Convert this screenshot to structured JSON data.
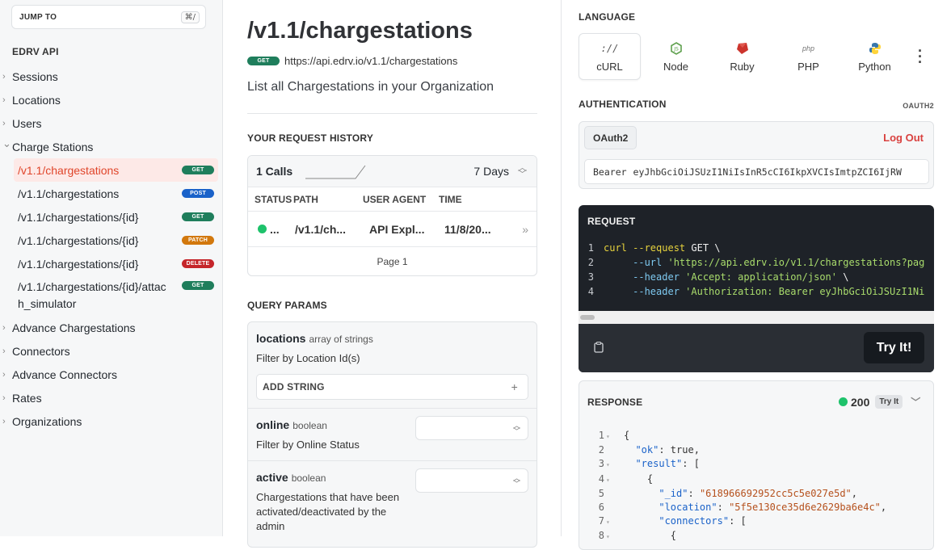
{
  "sidebar": {
    "jump_label": "JUMP TO",
    "jump_shortcut": "⌘/",
    "api_title": "EDRV API",
    "items_before": [
      {
        "label": "Sessions"
      },
      {
        "label": "Locations"
      },
      {
        "label": "Users"
      }
    ],
    "expanded": {
      "label": "Charge Stations",
      "children": [
        {
          "label": "/v1.1/chargestations",
          "method": "GET",
          "active": true
        },
        {
          "label": "/v1.1/chargestations",
          "method": "POST"
        },
        {
          "label": "/v1.1/chargestations/{id}",
          "method": "GET"
        },
        {
          "label": "/v1.1/chargestations/{id}",
          "method": "PATCH"
        },
        {
          "label": "/v1.1/chargestations/{id}",
          "method": "DELETE"
        },
        {
          "label": "/v1.1/chargestations/{id}/attach_simulator",
          "method": "GET"
        }
      ]
    },
    "items_after": [
      {
        "label": "Advance Chargestations"
      },
      {
        "label": "Connectors"
      },
      {
        "label": "Advance Connectors"
      },
      {
        "label": "Rates"
      },
      {
        "label": "Organizations"
      }
    ]
  },
  "endpoint": {
    "title": "/v1.1/chargestations",
    "method": "GET",
    "url": "https://api.edrv.io/v1.1/chargestations",
    "description": "List all Chargestations in your Organization"
  },
  "history": {
    "section_title": "YOUR REQUEST HISTORY",
    "calls": "1 Calls",
    "range": "7 Days",
    "columns": [
      "STATUS",
      "PATH",
      "USER AGENT",
      "TIME"
    ],
    "rows": [
      {
        "status": "...",
        "path": "/v1.1/ch...",
        "agent": "API Expl...",
        "time": "11/8/20..."
      }
    ],
    "page": "Page 1"
  },
  "query_params": {
    "section_title": "QUERY PARAMS",
    "params": [
      {
        "name": "locations",
        "type": "array of strings",
        "description": "Filter by Location Id(s)",
        "button": "ADD STRING"
      },
      {
        "name": "online",
        "type": "boolean",
        "description": "Filter by Online Status"
      },
      {
        "name": "active",
        "type": "boolean",
        "description": "Chargestations that have been activated/deactivated by the admin"
      }
    ]
  },
  "language": {
    "section_title": "LANGUAGE",
    "tabs": [
      {
        "label": "cURL",
        "icon": "curl-icon",
        "active": true
      },
      {
        "label": "Node",
        "icon": "node-icon"
      },
      {
        "label": "Ruby",
        "icon": "ruby-icon"
      },
      {
        "label": "PHP",
        "icon": "php-icon"
      },
      {
        "label": "Python",
        "icon": "python-icon"
      }
    ]
  },
  "auth": {
    "section_title": "AUTHENTICATION",
    "scheme_tag": "OAUTH2",
    "scheme_button": "OAuth2",
    "logout": "Log Out",
    "bearer_prefix": "Bearer",
    "token": "eyJhbGciOiJSUzI1NiIsInR5cCI6IkpXVCIsImtpZCI6IjRW"
  },
  "request": {
    "title": "REQUEST",
    "lines": [
      {
        "n": "1",
        "parts": [
          [
            "c-y",
            "curl "
          ],
          [
            "c-y",
            "--request "
          ],
          [
            "c-w",
            "GET \\"
          ]
        ]
      },
      {
        "n": "2",
        "parts": [
          [
            "c-w",
            "     "
          ],
          [
            "c-b",
            "--url "
          ],
          [
            "c-g",
            "'https://api.edrv.io/v1.1/chargestations?pag"
          ]
        ]
      },
      {
        "n": "3",
        "parts": [
          [
            "c-w",
            "     "
          ],
          [
            "c-b",
            "--header "
          ],
          [
            "c-g",
            "'Accept: application/json'"
          ],
          [
            "c-w",
            " \\"
          ]
        ]
      },
      {
        "n": "4",
        "parts": [
          [
            "c-w",
            "     "
          ],
          [
            "c-b",
            "--header "
          ],
          [
            "c-g",
            "'Authorization: Bearer eyJhbGciOiJSUzI1Ni"
          ]
        ]
      }
    ],
    "try_label": "Try It!"
  },
  "response": {
    "title": "RESPONSE",
    "status_code": "200",
    "try_label": "Try It",
    "lines": [
      {
        "n": "1",
        "fold": true,
        "text": [
          [
            "j-p",
            "{"
          ]
        ]
      },
      {
        "n": "2",
        "fold": false,
        "text": [
          [
            "j-p",
            "  "
          ],
          [
            "j-k",
            "\"ok\""
          ],
          [
            "j-p",
            ": true,"
          ]
        ]
      },
      {
        "n": "3",
        "fold": true,
        "text": [
          [
            "j-p",
            "  "
          ],
          [
            "j-k",
            "\"result\""
          ],
          [
            "j-p",
            ": ["
          ]
        ]
      },
      {
        "n": "4",
        "fold": true,
        "text": [
          [
            "j-p",
            "    {"
          ]
        ]
      },
      {
        "n": "5",
        "fold": false,
        "text": [
          [
            "j-p",
            "      "
          ],
          [
            "j-k",
            "\"_id\""
          ],
          [
            "j-p",
            ": "
          ],
          [
            "j-s",
            "\"618966692952cc5c5e027e5d\""
          ],
          [
            "j-p",
            ","
          ]
        ]
      },
      {
        "n": "6",
        "fold": false,
        "text": [
          [
            "j-p",
            "      "
          ],
          [
            "j-k",
            "\"location\""
          ],
          [
            "j-p",
            ": "
          ],
          [
            "j-s",
            "\"5f5e130ce35d6e2629ba6e4c\""
          ],
          [
            "j-p",
            ","
          ]
        ]
      },
      {
        "n": "7",
        "fold": true,
        "text": [
          [
            "j-p",
            "      "
          ],
          [
            "j-k",
            "\"connectors\""
          ],
          [
            "j-p",
            ": ["
          ]
        ]
      },
      {
        "n": "8",
        "fold": true,
        "text": [
          [
            "j-p",
            "        {"
          ]
        ]
      }
    ]
  },
  "colors": {
    "get": "#1f7e5c",
    "post": "#1a62c9",
    "patch": "#d2780d",
    "delete": "#c5262b",
    "active_text": "#e0452a",
    "status_dot": "#1ec26b"
  }
}
